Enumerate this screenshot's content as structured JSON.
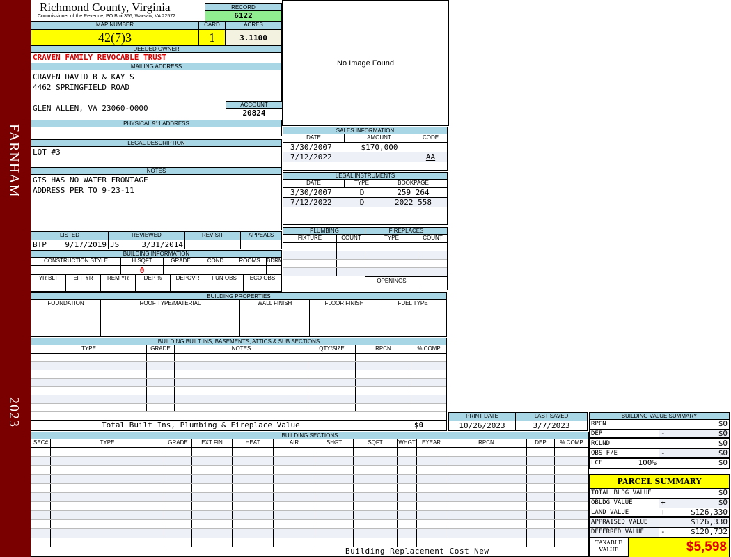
{
  "sidebar": {
    "district": "FARNHAM",
    "year": "2023"
  },
  "header": {
    "county": "Richmond County, Virginia",
    "subtitle": "Commissioner of the Revenue, PO Box 366, Warsaw, VA 22572",
    "record_label": "RECORD",
    "record": "6122"
  },
  "parcel": {
    "map_label": "MAP NUMBER",
    "map": "42(7)3",
    "card_label": "CARD",
    "card": "1",
    "acres_label": "ACRES",
    "acres": "3.1100"
  },
  "owner": {
    "label": "DEEDED OWNER",
    "name": "CRAVEN FAMILY REVOCABLE TRUST"
  },
  "mailing": {
    "label": "MAILING ADDRESS",
    "lines": [
      "CRAVEN DAVID B & KAY S",
      "4462 SPRINGFIELD ROAD",
      "GLEN ALLEN, VA 23060-0000"
    ],
    "account_label": "ACCOUNT",
    "account": "20824"
  },
  "physical": {
    "label": "PHYSICAL 911 ADDRESS",
    "value": ""
  },
  "legal": {
    "label": "LEGAL DESCRIPTION",
    "value": "LOT #3"
  },
  "notes": {
    "label": "NOTES",
    "lines": [
      "GIS HAS NO WATER FRONTAGE",
      "ADDRESS PER TO 9-23-11"
    ]
  },
  "image": {
    "text": "No Image Found"
  },
  "review": {
    "listed_label": "LISTED",
    "listed_by": "BTP",
    "listed_date": "9/17/2019",
    "reviewed_label": "REVIEWED",
    "reviewed_by": "JS",
    "reviewed_date": "3/31/2014",
    "revisit_label": "REVISIT",
    "appeals_label": "APPEALS"
  },
  "building_info": {
    "label": "BUILDING INFORMATION",
    "cols1": [
      "CONSTRUCTION STYLE",
      "H SQFT",
      "GRADE",
      "COND",
      "ROOMS",
      "BDRMS"
    ],
    "hsqft": "0",
    "cols2": [
      "YR BLT",
      "EFF YR",
      "REM YR",
      "DEP %",
      "DEPOVR",
      "FUN OBS",
      "ECO OBS"
    ]
  },
  "sales": {
    "label": "SALES INFORMATION",
    "cols": [
      "DATE",
      "AMOUNT",
      "CODE"
    ],
    "rows": [
      [
        "3/30/2007",
        "$170,000",
        ""
      ],
      [
        "7/12/2022",
        "",
        "AA"
      ]
    ]
  },
  "instruments": {
    "label": "LEGAL INSTRUMENTS",
    "cols": [
      "DATE",
      "TYPE",
      "BOOKPAGE"
    ],
    "rows": [
      [
        "3/30/2007",
        "D",
        "259 264"
      ],
      [
        "7/12/2022",
        "D",
        "2022 558"
      ]
    ]
  },
  "plumbing": {
    "label": "PLUMBING",
    "cols": [
      "FIXTURE",
      "COUNT"
    ]
  },
  "fireplaces": {
    "label": "FIREPLACES",
    "cols": [
      "TYPE",
      "COUNT"
    ],
    "openings": "OPENINGS"
  },
  "properties": {
    "label": "BUILDING PROPERTIES",
    "cols": [
      "FOUNDATION",
      "ROOF TYPE/MATERIAL",
      "WALL FINISH",
      "FLOOR FINISH",
      "FUEL TYPE"
    ]
  },
  "builtins": {
    "label": "BUILDING BUILT INS, BASEMENTS, ATTICS & SUB SECTIONS",
    "cols": [
      "TYPE",
      "GRADE",
      "NOTES",
      "QTY/SIZE",
      "RPCN",
      "% COMP"
    ],
    "total_label": "Total Built Ins, Plumbing & Fireplace Value",
    "total": "$0"
  },
  "dates": {
    "print_label": "PRINT DATE",
    "print": "10/26/2023",
    "saved_label": "LAST SAVED",
    "saved": "3/7/2023"
  },
  "sections": {
    "label": "BUILDING SECTIONS",
    "cols": [
      "SEC#",
      "TYPE",
      "GRADE",
      "EXT FIN",
      "HEAT",
      "AIR",
      "SHGT",
      "SQFT",
      "WHGT",
      "EYEAR",
      "RPCN",
      "DEP",
      "% COMP"
    ],
    "footer": "Building Replacement Cost New"
  },
  "value_summary": {
    "label": "BUILDING VALUE SUMMARY",
    "rows": [
      {
        "label": "RPCN",
        "op": "",
        "value": "$0"
      },
      {
        "label": "DEP",
        "op": "-",
        "value": "$0"
      },
      {
        "label": "RCLND",
        "op": "",
        "value": "$0"
      },
      {
        "label": "OBS F/E",
        "op": "-",
        "value": "$0"
      },
      {
        "label": "LCF",
        "pct": "100%",
        "op": "",
        "value": "$0"
      }
    ]
  },
  "parcel_summary": {
    "label": "PARCEL SUMMARY",
    "rows": [
      {
        "label": "TOTAL BLDG VALUE",
        "op": "",
        "value": "$0"
      },
      {
        "label": "OBLDG VALUE",
        "op": "+",
        "value": "$0"
      },
      {
        "label": "LAND VALUE",
        "op": "+",
        "value": "$126,330"
      },
      {
        "label": "APPRAISED VALUE",
        "op": "",
        "value": "$126,330"
      },
      {
        "label": "DEFERRED VALUE",
        "op": "-",
        "value": "$120,732"
      }
    ],
    "taxable_label": "TAXABLE VALUE",
    "taxable": "$5,598"
  },
  "colors": {
    "sidebar": "#7a0000",
    "header": "#a9d6e5",
    "highlight": "#ffff00",
    "record": "#90ee90",
    "owner": "#e00000"
  }
}
